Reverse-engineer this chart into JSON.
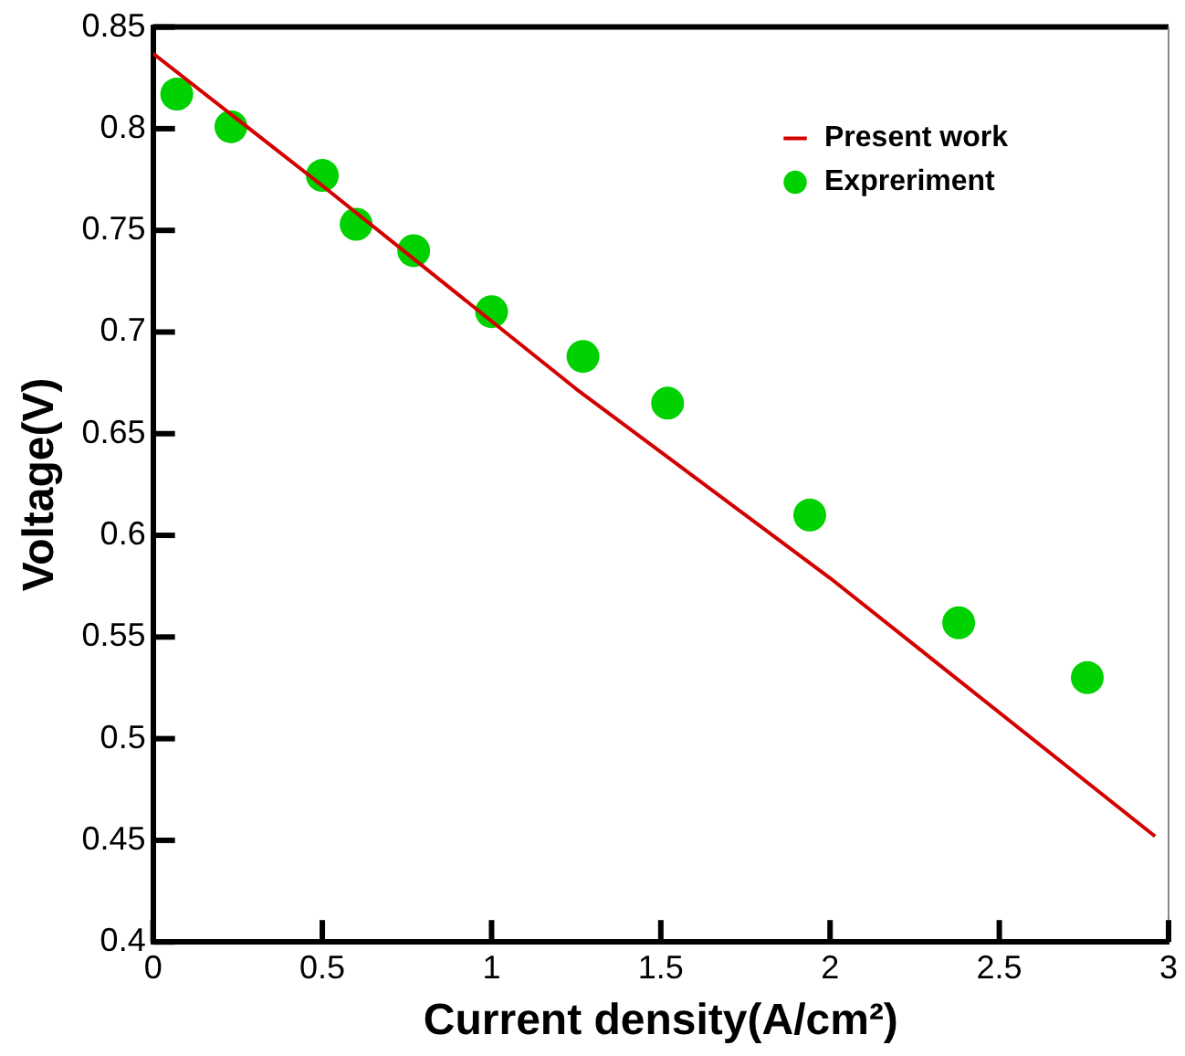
{
  "chart_data": {
    "type": "line",
    "xlabel": "Current density(A/cm²)",
    "ylabel": "Voltage(V)",
    "xlim": [
      0,
      3
    ],
    "xticks": [
      0,
      0.5,
      1,
      1.5,
      2,
      2.5,
      3
    ],
    "ylim": [
      0.4,
      0.85
    ],
    "yticks": [
      0.4,
      0.45,
      0.5,
      0.55,
      0.6,
      0.65,
      0.7,
      0.75,
      0.8,
      0.85
    ],
    "grid": false,
    "legend": "top right",
    "series": [
      {
        "name": "Present work",
        "color": "#d40000",
        "x": [
          0,
          0.5,
          1.25,
          2,
          2.96
        ],
        "values": [
          0.837,
          0.772,
          0.672,
          0.579,
          0.452
        ]
      },
      {
        "name": "Expreriment",
        "type": "scatter",
        "marker": "circle",
        "color": "#00d100",
        "x": [
          0.07,
          0.23,
          0.5,
          0.6,
          0.77,
          1.0,
          1.27,
          1.52,
          1.94,
          2.38,
          2.76
        ],
        "values": [
          0.817,
          0.801,
          0.777,
          0.753,
          0.74,
          0.71,
          0.688,
          0.665,
          0.61,
          0.557,
          0.53
        ]
      }
    ]
  }
}
